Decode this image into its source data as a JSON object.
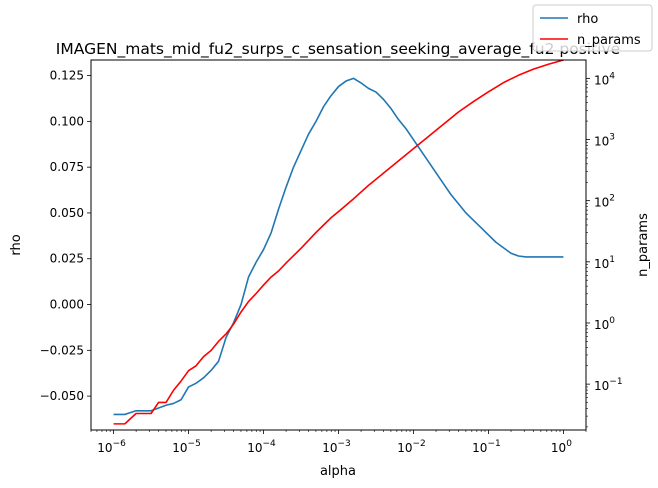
{
  "chart_data": {
    "type": "line",
    "title": "IMAGEN_mats_mid_fu2_surps_c_sensation_seeking_average_fu2 positive",
    "xlabel": "alpha",
    "ylabel_left": "rho",
    "ylabel_right": "n_params",
    "xscale": "log",
    "xlim": [
      5e-07,
      2
    ],
    "ylim_left": [
      -0.0685,
      0.1335
    ],
    "ylim_right_log10": [
      -1.75,
      4.3
    ],
    "x_ticks": [
      {
        "exp": -6,
        "label": "10",
        "sup": "−6"
      },
      {
        "exp": -5,
        "label": "10",
        "sup": "−5"
      },
      {
        "exp": -4,
        "label": "10",
        "sup": "−4"
      },
      {
        "exp": -3,
        "label": "10",
        "sup": "−3"
      },
      {
        "exp": -2,
        "label": "10",
        "sup": "−2"
      },
      {
        "exp": -1,
        "label": "10",
        "sup": "−1"
      },
      {
        "exp": 0,
        "label": "10",
        "sup": "0"
      }
    ],
    "y_left_ticks": [
      {
        "value": -0.05,
        "label": "−0.050"
      },
      {
        "value": -0.025,
        "label": "−0.025"
      },
      {
        "value": 0.0,
        "label": "0.000"
      },
      {
        "value": 0.025,
        "label": "0.025"
      },
      {
        "value": 0.05,
        "label": "0.050"
      },
      {
        "value": 0.075,
        "label": "0.075"
      },
      {
        "value": 0.1,
        "label": "0.100"
      },
      {
        "value": 0.125,
        "label": "0.125"
      }
    ],
    "y_right_ticks": [
      {
        "exp": -1,
        "label": "10",
        "sup": "−1"
      },
      {
        "exp": 0,
        "label": "10",
        "sup": "0"
      },
      {
        "exp": 1,
        "label": "10",
        "sup": "1"
      },
      {
        "exp": 2,
        "label": "10",
        "sup": "2"
      },
      {
        "exp": 3,
        "label": "10",
        "sup": "3"
      },
      {
        "exp": 4,
        "label": "10",
        "sup": "4"
      }
    ],
    "legend": {
      "position": "top-right",
      "entries": [
        "rho",
        "n_params"
      ]
    },
    "series": [
      {
        "name": "rho",
        "axis": "left",
        "color": "#1f77b4",
        "log10_x": [
          -6.0,
          -5.85,
          -5.7,
          -5.5,
          -5.3,
          -5.2,
          -5.1,
          -5.0,
          -4.9,
          -4.8,
          -4.7,
          -4.6,
          -4.5,
          -4.4,
          -4.3,
          -4.2,
          -4.1,
          -4.0,
          -3.9,
          -3.8,
          -3.7,
          -3.6,
          -3.5,
          -3.4,
          -3.3,
          -3.2,
          -3.1,
          -3.0,
          -2.9,
          -2.8,
          -2.7,
          -2.6,
          -2.5,
          -2.4,
          -2.3,
          -2.2,
          -2.1,
          -2.0,
          -1.9,
          -1.8,
          -1.7,
          -1.6,
          -1.5,
          -1.4,
          -1.3,
          -1.2,
          -1.1,
          -1.0,
          -0.9,
          -0.8,
          -0.7,
          -0.6,
          -0.5,
          -0.4,
          -0.3,
          -0.2,
          -0.1,
          0.0
        ],
        "values": [
          -0.06,
          -0.06,
          -0.058,
          -0.058,
          -0.055,
          -0.054,
          -0.052,
          -0.045,
          -0.043,
          -0.04,
          -0.036,
          -0.031,
          -0.018,
          -0.01,
          0.0,
          0.015,
          0.023,
          0.03,
          0.039,
          0.052,
          0.064,
          0.075,
          0.084,
          0.093,
          0.1,
          0.108,
          0.114,
          0.119,
          0.122,
          0.1235,
          0.121,
          0.118,
          0.116,
          0.112,
          0.107,
          0.101,
          0.096,
          0.09,
          0.084,
          0.078,
          0.072,
          0.066,
          0.06,
          0.055,
          0.05,
          0.046,
          0.042,
          0.038,
          0.034,
          0.031,
          0.028,
          0.0265,
          0.026,
          0.026,
          0.026,
          0.026,
          0.026,
          0.026
        ]
      },
      {
        "name": "n_params",
        "axis": "right",
        "color": "#ff0000",
        "log10_x": [
          -6.0,
          -5.85,
          -5.7,
          -5.5,
          -5.4,
          -5.3,
          -5.2,
          -5.1,
          -5.0,
          -4.9,
          -4.8,
          -4.7,
          -4.6,
          -4.5,
          -4.4,
          -4.3,
          -4.2,
          -4.1,
          -4.0,
          -3.9,
          -3.8,
          -3.7,
          -3.6,
          -3.5,
          -3.4,
          -3.3,
          -3.2,
          -3.1,
          -3.0,
          -2.8,
          -2.6,
          -2.4,
          -2.2,
          -2.0,
          -1.8,
          -1.6,
          -1.4,
          -1.2,
          -1.0,
          -0.8,
          -0.6,
          -0.4,
          -0.2,
          0.0
        ],
        "log10_values": [
          -1.65,
          -1.65,
          -1.48,
          -1.48,
          -1.3,
          -1.3,
          -1.1,
          -0.95,
          -0.78,
          -0.7,
          -0.55,
          -0.45,
          -0.3,
          -0.18,
          -0.02,
          0.18,
          0.35,
          0.48,
          0.62,
          0.75,
          0.85,
          0.98,
          1.1,
          1.22,
          1.35,
          1.48,
          1.6,
          1.72,
          1.82,
          2.03,
          2.25,
          2.45,
          2.65,
          2.85,
          3.05,
          3.25,
          3.45,
          3.62,
          3.78,
          3.93,
          4.05,
          4.15,
          4.23,
          4.3
        ]
      }
    ]
  }
}
